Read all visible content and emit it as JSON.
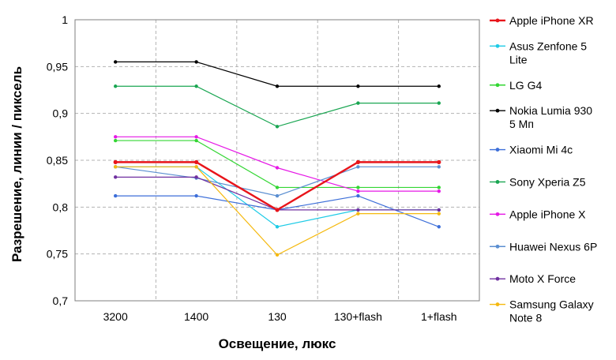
{
  "chart_data": {
    "type": "line",
    "xlabel": "Освещение, люкс",
    "ylabel": "Разрешение, линии / пиксель",
    "categories": [
      "3200",
      "1400",
      "130",
      "130+flash",
      "1+flash"
    ],
    "ylim": [
      0.7,
      1
    ],
    "yticks": [
      "0,7",
      "0,75",
      "0,8",
      "0,85",
      "0,9",
      "0,95",
      "1"
    ],
    "grid": true,
    "legend_position": "right",
    "series": [
      {
        "name": "Apple iPhone XR",
        "color": "#e8141a",
        "bold": true,
        "values": [
          0.848,
          0.848,
          0.797,
          0.848,
          0.848
        ]
      },
      {
        "name": "Asus Zenfone 5 Lite",
        "color": "#1ecbe6",
        "values": [
          0.843,
          0.843,
          0.779,
          0.797,
          0.797
        ]
      },
      {
        "name": "LG G4",
        "color": "#33d633",
        "values": [
          0.871,
          0.871,
          0.821,
          0.821,
          0.821
        ]
      },
      {
        "name": "Nokia Lumia 930 5 Мп",
        "color": "#000000",
        "values": [
          0.955,
          0.955,
          0.929,
          0.929,
          0.929
        ]
      },
      {
        "name": "Xiaomi Mi 4c",
        "color": "#3d6fd9",
        "values": [
          0.812,
          0.812,
          0.797,
          0.812,
          0.779
        ]
      },
      {
        "name": "Sony Xperia Z5",
        "color": "#1aa652",
        "values": [
          0.929,
          0.929,
          0.886,
          0.911,
          0.911
        ]
      },
      {
        "name": "Apple iPhone X",
        "color": "#e619e6",
        "values": [
          0.875,
          0.875,
          0.842,
          0.817,
          0.817
        ]
      },
      {
        "name": "Huawei Nexus 6P",
        "color": "#5b8fd1",
        "values": [
          0.843,
          0.831,
          0.812,
          0.843,
          0.843
        ]
      },
      {
        "name": "Moto X Force",
        "color": "#7030a0",
        "values": [
          0.832,
          0.832,
          0.797,
          0.797,
          0.797
        ]
      },
      {
        "name": "Samsung Galaxy Note 8",
        "color": "#f5b90f",
        "values": [
          0.843,
          0.843,
          0.749,
          0.793,
          0.793
        ]
      }
    ],
    "legend_lines": [
      [
        "Apple iPhone XR"
      ],
      [
        "Asus Zenfone 5",
        "Lite"
      ],
      [
        "LG G4"
      ],
      [
        "Nokia Lumia 930",
        "5 Мп"
      ],
      [
        "Xiaomi Mi 4c"
      ],
      [
        "Sony Xperia Z5"
      ],
      [
        "Apple iPhone X"
      ],
      [
        "Huawei Nexus 6P"
      ],
      [
        "Moto X Force"
      ],
      [
        "Samsung Galaxy",
        "Note 8"
      ]
    ]
  }
}
